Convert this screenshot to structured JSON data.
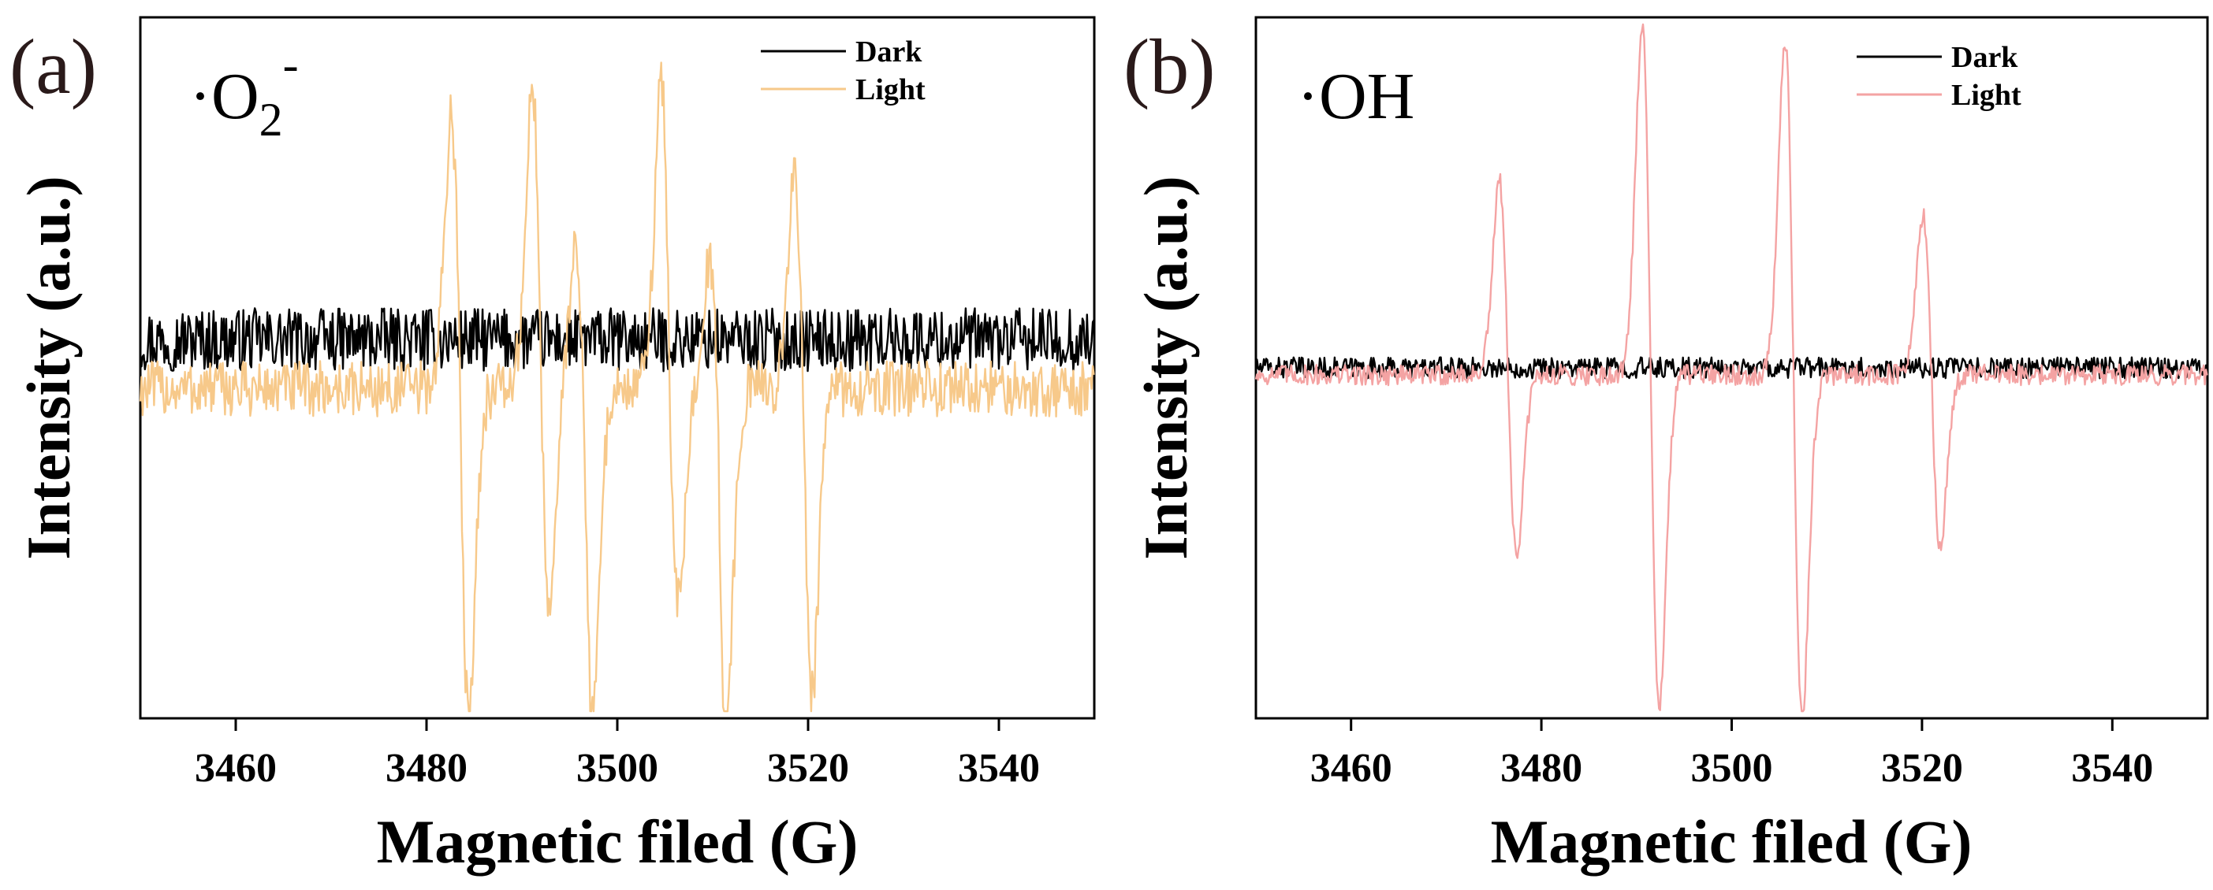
{
  "chart_data": [
    {
      "type": "line",
      "panel_label": "(a)",
      "species_label": {
        "prefix": "·O",
        "subscript": "2",
        "superscript": "-"
      },
      "xlabel": "Magnetic filed (G)",
      "ylabel": "Intensity (a.u.)",
      "xlim": [
        3450,
        3550
      ],
      "ylim": [
        -1.0,
        1.0
      ],
      "xticks": [
        3460,
        3480,
        3500,
        3520,
        3540
      ],
      "yticks_visible": false,
      "legend_position": "top-right",
      "series": [
        {
          "name": "Dark",
          "color": "#000000",
          "baseline": 0.08,
          "noise": 0.09,
          "peaks": []
        },
        {
          "name": "Light",
          "color": "#f7c98a",
          "baseline": -0.06,
          "noise": 0.08,
          "noise_range": [
            3450,
            3550
          ],
          "peaks": [
            {
              "x": 3483.5,
              "pos": 0.78,
              "neg": -0.92
            },
            {
              "x": 3492.0,
              "pos": 0.85,
              "neg": -0.6
            },
            {
              "x": 3496.5,
              "pos": 0.4,
              "neg": -0.95
            },
            {
              "x": 3505.5,
              "pos": 0.88,
              "neg": -0.62
            },
            {
              "x": 3510.5,
              "pos": 0.35,
              "neg": -1.0
            },
            {
              "x": 3519.5,
              "pos": 0.6,
              "neg": -0.88
            }
          ]
        }
      ]
    },
    {
      "type": "line",
      "panel_label": "(b)",
      "species_label": {
        "prefix": "·OH",
        "subscript": "",
        "superscript": ""
      },
      "xlabel": "Magnetic filed (G)",
      "ylabel": "Intensity (a.u.)",
      "xlim": [
        3450,
        3550
      ],
      "ylim": [
        -1.0,
        1.0
      ],
      "xticks": [
        3460,
        3480,
        3500,
        3520,
        3540
      ],
      "yticks_visible": false,
      "legend_position": "top-right",
      "series": [
        {
          "name": "Dark",
          "color": "#000000",
          "baseline": 0.0,
          "noise": 0.03,
          "peaks": []
        },
        {
          "name": "Light",
          "color": "#f4a3a3",
          "baseline": -0.02,
          "noise": 0.03,
          "peaks": [
            {
              "x": 3476.5,
              "pos": 0.55,
              "neg": -0.52
            },
            {
              "x": 3491.5,
              "pos": 1.0,
              "neg": -0.95
            },
            {
              "x": 3506.5,
              "pos": 0.95,
              "neg": -0.98
            },
            {
              "x": 3521.0,
              "pos": 0.45,
              "neg": -0.5
            }
          ]
        }
      ]
    }
  ]
}
